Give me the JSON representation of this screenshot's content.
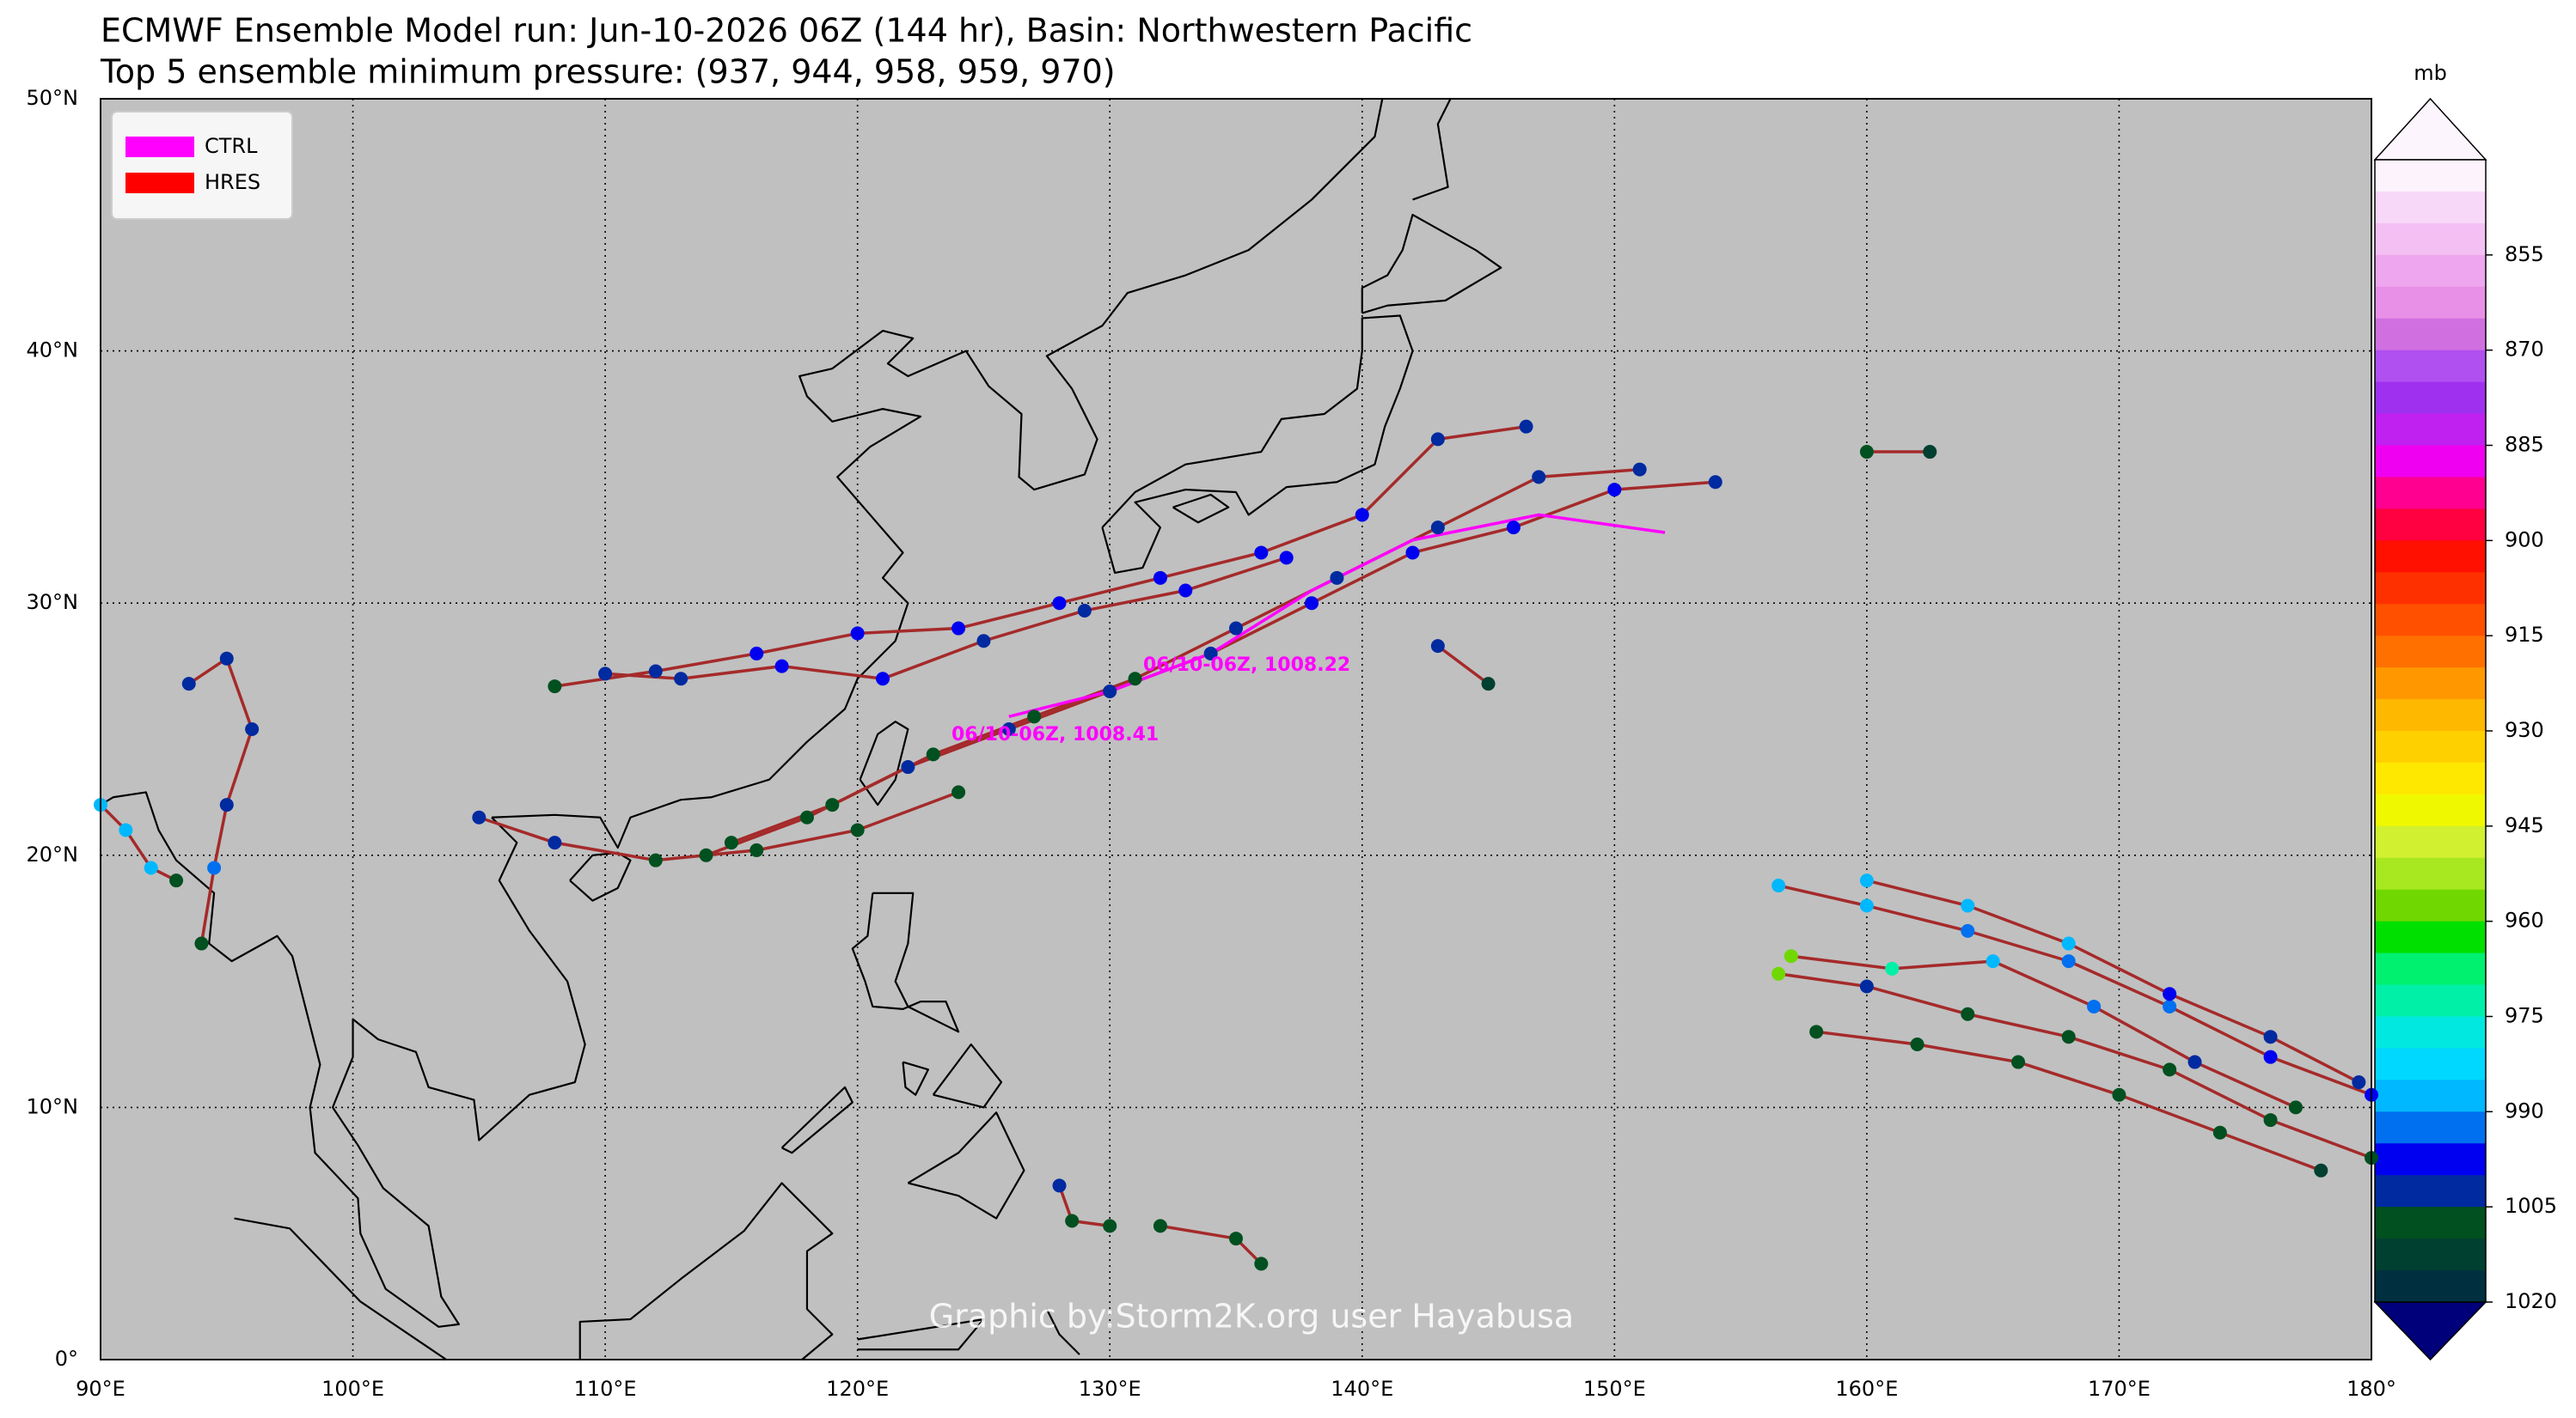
{
  "chart_data": {
    "type": "map",
    "title": "ECMWF Ensemble Model run: Jun-10-2026 06Z (144 hr), Basin: Northwestern Pacific",
    "subtitle": "Top 5 ensemble minimum pressure: (937, 944, 958, 959, 970)",
    "xlim": [
      90,
      180
    ],
    "ylim": [
      0,
      50
    ],
    "xticks": [
      {
        "value": 90,
        "label": "90°E"
      },
      {
        "value": 100,
        "label": "100°E"
      },
      {
        "value": 110,
        "label": "110°E"
      },
      {
        "value": 120,
        "label": "120°E"
      },
      {
        "value": 130,
        "label": "130°E"
      },
      {
        "value": 140,
        "label": "140°E"
      },
      {
        "value": 150,
        "label": "150°E"
      },
      {
        "value": 160,
        "label": "160°E"
      },
      {
        "value": 170,
        "label": "170°E"
      },
      {
        "value": 180,
        "label": "180°"
      }
    ],
    "yticks": [
      {
        "value": 0,
        "label": "0°"
      },
      {
        "value": 10,
        "label": "10°N"
      },
      {
        "value": 20,
        "label": "20°N"
      },
      {
        "value": 30,
        "label": "30°N"
      },
      {
        "value": 40,
        "label": "40°N"
      },
      {
        "value": 50,
        "label": "50°N"
      }
    ],
    "grid": true,
    "map_color": "#c0c0c0",
    "track_color": "#a52a2a",
    "legend": {
      "position": "upper left",
      "entries": [
        {
          "name": "CTRL",
          "color": "#ff00ff"
        },
        {
          "name": "HRES",
          "color": "#ff0000"
        }
      ]
    },
    "colorbar": {
      "label": "mb",
      "lim": [
        840,
        1020
      ],
      "ticks": [
        855,
        870,
        885,
        900,
        915,
        930,
        945,
        960,
        975,
        990,
        1005,
        1020
      ],
      "colors": [
        "#fdf3fd",
        "#f8d8f8",
        "#f4c0f4",
        "#eea6ee",
        "#e890e8",
        "#d070e0",
        "#b050f0",
        "#a030f0",
        "#c020f0",
        "#f000f0",
        "#ff0090",
        "#ff0040",
        "#ff1000",
        "#ff3000",
        "#ff5000",
        "#ff7000",
        "#ff9800",
        "#ffb800",
        "#ffd000",
        "#ffe800",
        "#f0f800",
        "#d0f030",
        "#a8e820",
        "#70d800",
        "#00e000",
        "#00f070",
        "#00f0a8",
        "#00e8e0",
        "#00d8ff",
        "#00b8ff",
        "#0070f0",
        "#0000f0",
        "#002aa0",
        "#005020",
        "#004030",
        "#003040"
      ],
      "extend_colors": [
        "#fdf5fd",
        "#00007a"
      ]
    },
    "tracks": [
      {
        "lon": [
          114,
          118,
          122,
          126,
          130,
          134,
          138,
          142,
          146,
          150,
          154
        ],
        "lat": [
          20,
          21.5,
          23.5,
          25,
          26.5,
          28,
          30,
          32,
          33,
          34.5,
          34.8
        ],
        "pressure": [
          1008,
          1006,
          1004,
          1003,
          1002,
          1000,
          998,
          996,
          995,
          998,
          1000
        ]
      },
      {
        "lon": [
          115,
          119,
          123,
          127,
          131,
          135,
          139,
          143,
          147,
          151
        ],
        "lat": [
          20.5,
          22,
          24,
          25.5,
          27,
          29,
          31,
          33,
          35,
          35.3
        ],
        "pressure": [
          1009,
          1008,
          1007,
          1006,
          1005,
          1004,
          1003,
          1001,
          1000,
          1000
        ]
      },
      {
        "lon": [
          108,
          112,
          116,
          120,
          124,
          128,
          132,
          136,
          140,
          143,
          146.5
        ],
        "lat": [
          26.7,
          27.3,
          28,
          28.8,
          29,
          30,
          31,
          32,
          33.5,
          36.5,
          37
        ],
        "pressure": [
          1006,
          1000,
          999,
          998,
          998,
          997,
          998,
          999,
          999,
          1000,
          1000
        ]
      },
      {
        "lon": [
          110,
          113,
          117,
          121,
          125,
          129,
          133,
          137
        ],
        "lat": [
          27.2,
          27,
          27.5,
          27,
          28.5,
          29.7,
          30.5,
          31.8
        ],
        "pressure": [
          1001,
          1000,
          999,
          998,
          1000,
          1000,
          999,
          999
        ]
      },
      {
        "lon": [
          105,
          108,
          112,
          116,
          120,
          124
        ],
        "lat": [
          21.5,
          20.5,
          19.8,
          20.2,
          21,
          22.5
        ],
        "pressure": [
          1003,
          1004,
          1008,
          1008,
          1007,
          1006
        ]
      },
      {
        "lon": [
          156.5,
          160,
          164,
          168,
          172,
          176,
          180
        ],
        "lat": [
          18.8,
          18,
          17,
          15.8,
          14,
          12,
          10.5
        ],
        "pressure": [
          989,
          988,
          990,
          991,
          993,
          995,
          997
        ]
      },
      {
        "lon": [
          156.5,
          160,
          164,
          168,
          172,
          176,
          180
        ],
        "lat": [
          15.3,
          14.8,
          13.7,
          12.8,
          11.5,
          9.5,
          8
        ],
        "pressure": [
          958,
          1004,
          1006,
          1007,
          1008,
          1008,
          1009
        ]
      },
      {
        "lon": [
          158,
          162,
          166,
          170,
          174,
          178
        ],
        "lat": [
          13,
          12.5,
          11.8,
          10.5,
          9,
          7.5
        ],
        "pressure": [
          1008,
          1008,
          1009,
          1008,
          1009,
          1010
        ]
      },
      {
        "lon": [
          157,
          161,
          165,
          169,
          173,
          177
        ],
        "lat": [
          16,
          15.5,
          15.8,
          14,
          11.8,
          10
        ],
        "pressure": [
          959,
          970,
          985,
          990,
          1001,
          1005
        ]
      },
      {
        "lon": [
          160,
          164,
          168,
          172,
          176,
          179.5
        ],
        "lat": [
          19,
          18,
          16.5,
          14.5,
          12.8,
          11
        ],
        "pressure": [
          985,
          986,
          987,
          996,
          1000,
          1002
        ]
      },
      {
        "lon": [
          93.5,
          95,
          96,
          95,
          94.5,
          94
        ],
        "lat": [
          26.8,
          27.8,
          25,
          22,
          19.5,
          16.5
        ],
        "pressure": [
          1002,
          1000,
          1003,
          1001,
          992,
          1006
        ]
      },
      {
        "lon": [
          90,
          91,
          92,
          93
        ],
        "lat": [
          22,
          21,
          19.5,
          19
        ],
        "pressure": [
          986,
          985,
          988,
          1008
        ]
      },
      {
        "lon": [
          128,
          128.5,
          130
        ],
        "lat": [
          6.9,
          5.5,
          5.3
        ],
        "pressure": [
          1001,
          1009,
          1008
        ]
      },
      {
        "lon": [
          132,
          135,
          136
        ],
        "lat": [
          5.3,
          4.8,
          3.8
        ],
        "pressure": [
          1008,
          1009,
          1009
        ]
      },
      {
        "lon": [
          160,
          162.5
        ],
        "lat": [
          36,
          36
        ],
        "pressure": [
          1009,
          1010
        ]
      },
      {
        "lon": [
          143,
          145
        ],
        "lat": [
          28.3,
          26.8
        ],
        "pressure": [
          1002,
          1010
        ]
      }
    ],
    "ctrl": {
      "lon": [
        126,
        130,
        134,
        138,
        142,
        147,
        152
      ],
      "lat": [
        25.5,
        26.5,
        28,
        30.5,
        32.5,
        33.5,
        32.8
      ]
    },
    "annotations": [
      "06/10-06Z, 1008.41",
      "06/10-06Z, 1008.22"
    ],
    "credit": "Graphic by:Storm2K.org user Hayabusa"
  }
}
